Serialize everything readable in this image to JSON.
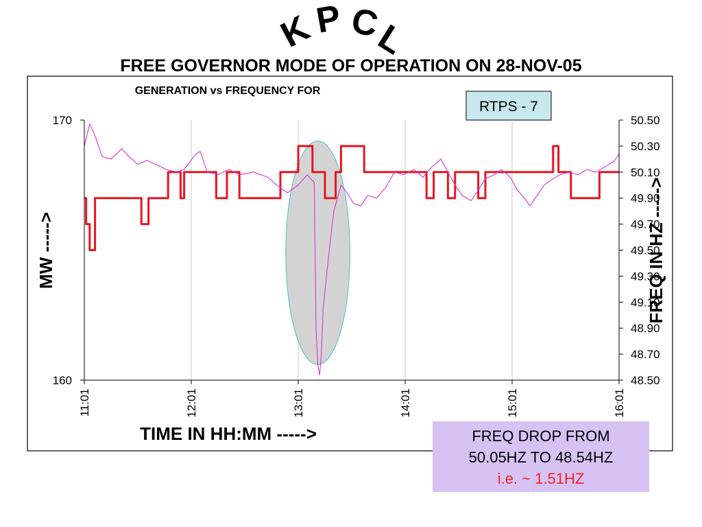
{
  "header": {
    "brand": "KPCL",
    "title": "FREE GOVERNOR MODE OF OPERATION ON 28-NOV-05"
  },
  "chart_data": {
    "type": "line",
    "title": "GENERATION vs FREQUENCY FOR",
    "unit_tag": "RTPS - 7",
    "xlabel": "TIME IN HH:MM ----->",
    "ylabel_left": "MW ----->",
    "ylabel_right": "FREQ IN HZ ----->",
    "x_ticks": [
      "11:01",
      "12:01",
      "13:01",
      "14:01",
      "15:01",
      "16:01"
    ],
    "x_range": [
      "11:01",
      "16:01"
    ],
    "y_left_range": [
      160,
      170
    ],
    "y_left_ticks": [
      "160",
      "170"
    ],
    "y_right_range": [
      48.5,
      50.5
    ],
    "y_right_ticks": [
      "48.50",
      "48.70",
      "48.90",
      "49.10",
      "49.30",
      "49.50",
      "49.70",
      "49.90",
      "50.10",
      "50.30",
      "50.50"
    ],
    "grid": "vertical",
    "series": [
      {
        "axis": "left",
        "color": "#e8141e",
        "points": [
          [
            "11:01",
            167
          ],
          [
            "11:02",
            167
          ],
          [
            "11:02",
            166
          ],
          [
            "11:04",
            166
          ],
          [
            "11:04",
            165
          ],
          [
            "11:07",
            165
          ],
          [
            "11:07",
            167
          ],
          [
            "11:33",
            167
          ],
          [
            "11:33",
            166
          ],
          [
            "11:37",
            166
          ],
          [
            "11:37",
            167
          ],
          [
            "11:48",
            167
          ],
          [
            "11:48",
            168
          ],
          [
            "11:55",
            168
          ],
          [
            "11:55",
            167
          ],
          [
            "11:57",
            167
          ],
          [
            "11:57",
            168
          ],
          [
            "12:15",
            168
          ],
          [
            "12:15",
            167
          ],
          [
            "12:21",
            167
          ],
          [
            "12:21",
            168
          ],
          [
            "12:28",
            168
          ],
          [
            "12:28",
            167
          ],
          [
            "12:51",
            167
          ],
          [
            "12:51",
            168
          ],
          [
            "13:01",
            168
          ],
          [
            "13:01",
            169
          ],
          [
            "13:09",
            169
          ],
          [
            "13:09",
            168
          ],
          [
            "13:16",
            168
          ],
          [
            "13:16",
            167
          ],
          [
            "13:22",
            167
          ],
          [
            "13:22",
            168
          ],
          [
            "13:25",
            168
          ],
          [
            "13:25",
            169
          ],
          [
            "13:38",
            169
          ],
          [
            "13:38",
            168
          ],
          [
            "14:13",
            168
          ],
          [
            "14:13",
            167
          ],
          [
            "14:17",
            167
          ],
          [
            "14:17",
            168
          ],
          [
            "14:25",
            168
          ],
          [
            "14:25",
            167
          ],
          [
            "14:29",
            167
          ],
          [
            "14:29",
            168
          ],
          [
            "14:42",
            168
          ],
          [
            "14:42",
            167
          ],
          [
            "14:46",
            167
          ],
          [
            "14:46",
            168
          ],
          [
            "15:24",
            168
          ],
          [
            "15:24",
            169
          ],
          [
            "15:27",
            169
          ],
          [
            "15:27",
            168
          ],
          [
            "15:34",
            168
          ],
          [
            "15:34",
            167
          ],
          [
            "15:50",
            167
          ],
          [
            "15:50",
            168
          ],
          [
            "16:01",
            168
          ]
        ]
      },
      {
        "axis": "right",
        "color": "#d633d6",
        "points": [
          [
            "11:01",
            50.3
          ],
          [
            "11:04",
            50.47
          ],
          [
            "11:07",
            50.38
          ],
          [
            "11:11",
            50.22
          ],
          [
            "11:16",
            50.2
          ],
          [
            "11:22",
            50.28
          ],
          [
            "11:26",
            50.22
          ],
          [
            "11:31",
            50.16
          ],
          [
            "11:36",
            50.19
          ],
          [
            "11:41",
            50.16
          ],
          [
            "11:47",
            50.12
          ],
          [
            "11:53",
            50.1
          ],
          [
            "11:57",
            50.12
          ],
          [
            "12:03",
            50.23
          ],
          [
            "12:06",
            50.26
          ],
          [
            "12:10",
            50.1
          ],
          [
            "12:16",
            50.08
          ],
          [
            "12:22",
            50.12
          ],
          [
            "12:28",
            50.08
          ],
          [
            "12:36",
            50.1
          ],
          [
            "12:44",
            50.06
          ],
          [
            "12:49",
            50.0
          ],
          [
            "12:55",
            49.94
          ],
          [
            "13:01",
            50.0
          ],
          [
            "13:06",
            50.08
          ],
          [
            "13:10",
            50.02
          ],
          [
            "13:11",
            48.9
          ],
          [
            "13:12",
            48.62
          ],
          [
            "13:13",
            48.54
          ],
          [
            "13:14",
            48.7
          ],
          [
            "13:15",
            49.05
          ],
          [
            "13:18",
            49.45
          ],
          [
            "13:21",
            49.8
          ],
          [
            "13:25",
            50.0
          ],
          [
            "13:28",
            49.95
          ],
          [
            "13:32",
            49.86
          ],
          [
            "13:36",
            49.84
          ],
          [
            "13:40",
            49.92
          ],
          [
            "13:45",
            49.9
          ],
          [
            "13:50",
            49.98
          ],
          [
            "13:55",
            50.1
          ],
          [
            "14:00",
            50.08
          ],
          [
            "14:06",
            50.12
          ],
          [
            "14:11",
            50.06
          ],
          [
            "14:16",
            50.14
          ],
          [
            "14:21",
            50.2
          ],
          [
            "14:25",
            50.1
          ],
          [
            "14:29",
            50.0
          ],
          [
            "14:33",
            49.92
          ],
          [
            "14:38",
            49.88
          ],
          [
            "14:42",
            49.96
          ],
          [
            "14:46",
            50.05
          ],
          [
            "14:51",
            50.08
          ],
          [
            "14:55",
            50.12
          ],
          [
            "15:00",
            50.06
          ],
          [
            "15:04",
            49.96
          ],
          [
            "15:08",
            49.9
          ],
          [
            "15:11",
            49.84
          ],
          [
            "15:15",
            49.92
          ],
          [
            "15:19",
            50.0
          ],
          [
            "15:24",
            50.05
          ],
          [
            "15:28",
            50.08
          ],
          [
            "15:33",
            50.1
          ],
          [
            "15:38",
            50.08
          ],
          [
            "15:43",
            50.12
          ],
          [
            "15:48",
            50.1
          ],
          [
            "15:53",
            50.14
          ],
          [
            "15:58",
            50.18
          ],
          [
            "16:01",
            50.24
          ]
        ]
      }
    ],
    "highlight": {
      "x_center": "13:12",
      "x_halfwidth_min": 18,
      "y_right_range": [
        48.62,
        50.34
      ]
    },
    "annotation": {
      "line1": "FREQ DROP FROM",
      "line2": "50.05HZ TO 48.54HZ",
      "line3": "i.e. ~ 1.51HZ"
    }
  },
  "colors": {
    "mw_line": "#e8141e",
    "freq_line": "#d633d6",
    "highlight_fill": "#d3d3d3",
    "highlight_stroke": "#45c4c8",
    "tag_fill": "#c7e8ec",
    "annotation_fill": "#d6c3f4",
    "annotation_emphasis": "#ff2020"
  }
}
